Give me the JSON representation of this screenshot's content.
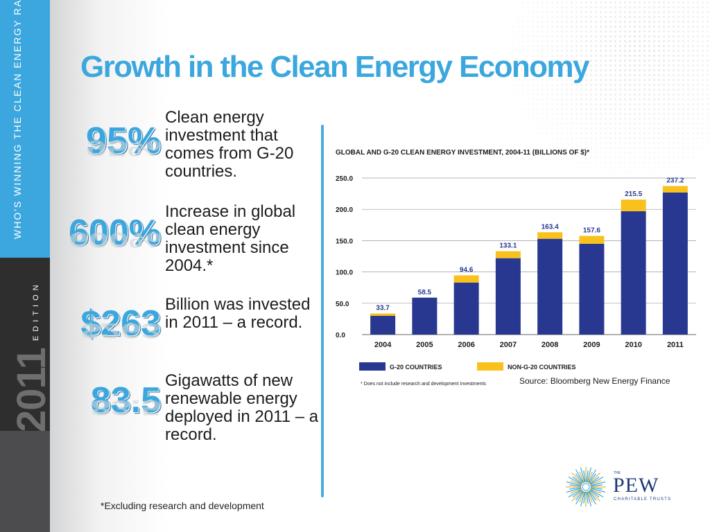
{
  "sidebar": {
    "vertical_text": "WHO'S WINNING THE CLEAN ENERGY RACE?",
    "year": "2011",
    "edition": "EDITION"
  },
  "title": "Growth in the Clean Energy Economy",
  "stats": [
    {
      "value": "95%",
      "description": "Clean energy investment that comes from G-20 countries."
    },
    {
      "value": "600%",
      "description": "Increase in global clean energy investment since 2004.*"
    },
    {
      "value": "$263",
      "description": "Billion was invested in 2011 – a record."
    },
    {
      "value": "83.5",
      "description": "Gigawatts of new renewable energy deployed in 2011 – a record."
    }
  ],
  "footnote": "*Excluding research and development",
  "source": "Source: Bloomberg New Energy Finance",
  "logo": {
    "the": "THE",
    "name": "PEW",
    "subtitle": "CHARITABLE TRUSTS"
  },
  "colors": {
    "accent_blue": "#3ba7de",
    "g20_bar": "#283891",
    "non_g20_bar": "#f9c11c",
    "sidebar_dark": "#2e2e2e"
  },
  "chart_data": {
    "type": "bar",
    "stacked": true,
    "title": "GLOBAL AND G-20 CLEAN ENERGY INVESTMENT, 2004-11 (BILLIONS OF $)*",
    "categories": [
      "2004",
      "2005",
      "2006",
      "2007",
      "2008",
      "2009",
      "2010",
      "2011"
    ],
    "series": [
      {
        "name": "G-20 COUNTRIES",
        "color": "#283891",
        "values": [
          30.0,
          59.0,
          83.0,
          122.0,
          153.0,
          145.0,
          197.0,
          227.0
        ]
      },
      {
        "name": "NON-G-20 COUNTRIES",
        "color": "#f9c11c",
        "values": [
          3.7,
          -0.5,
          11.6,
          11.1,
          10.4,
          12.6,
          18.5,
          10.2
        ]
      }
    ],
    "totals": [
      33.7,
      58.5,
      94.6,
      133.1,
      163.4,
      157.6,
      215.5,
      237.2
    ],
    "total_labels": [
      "33.7",
      "58.5",
      "94.6",
      "133.1",
      "163.4",
      "157.6",
      "215.5",
      "237.2"
    ],
    "ylim": [
      0,
      250
    ],
    "yticks": [
      0,
      50,
      100,
      150,
      200,
      250
    ],
    "ytick_labels": [
      "0.0",
      "50.0",
      "100.0",
      "150.0",
      "200.0",
      "250.0"
    ],
    "grid": true,
    "legend": "bottom",
    "note": "* Does not include research and development investments"
  }
}
